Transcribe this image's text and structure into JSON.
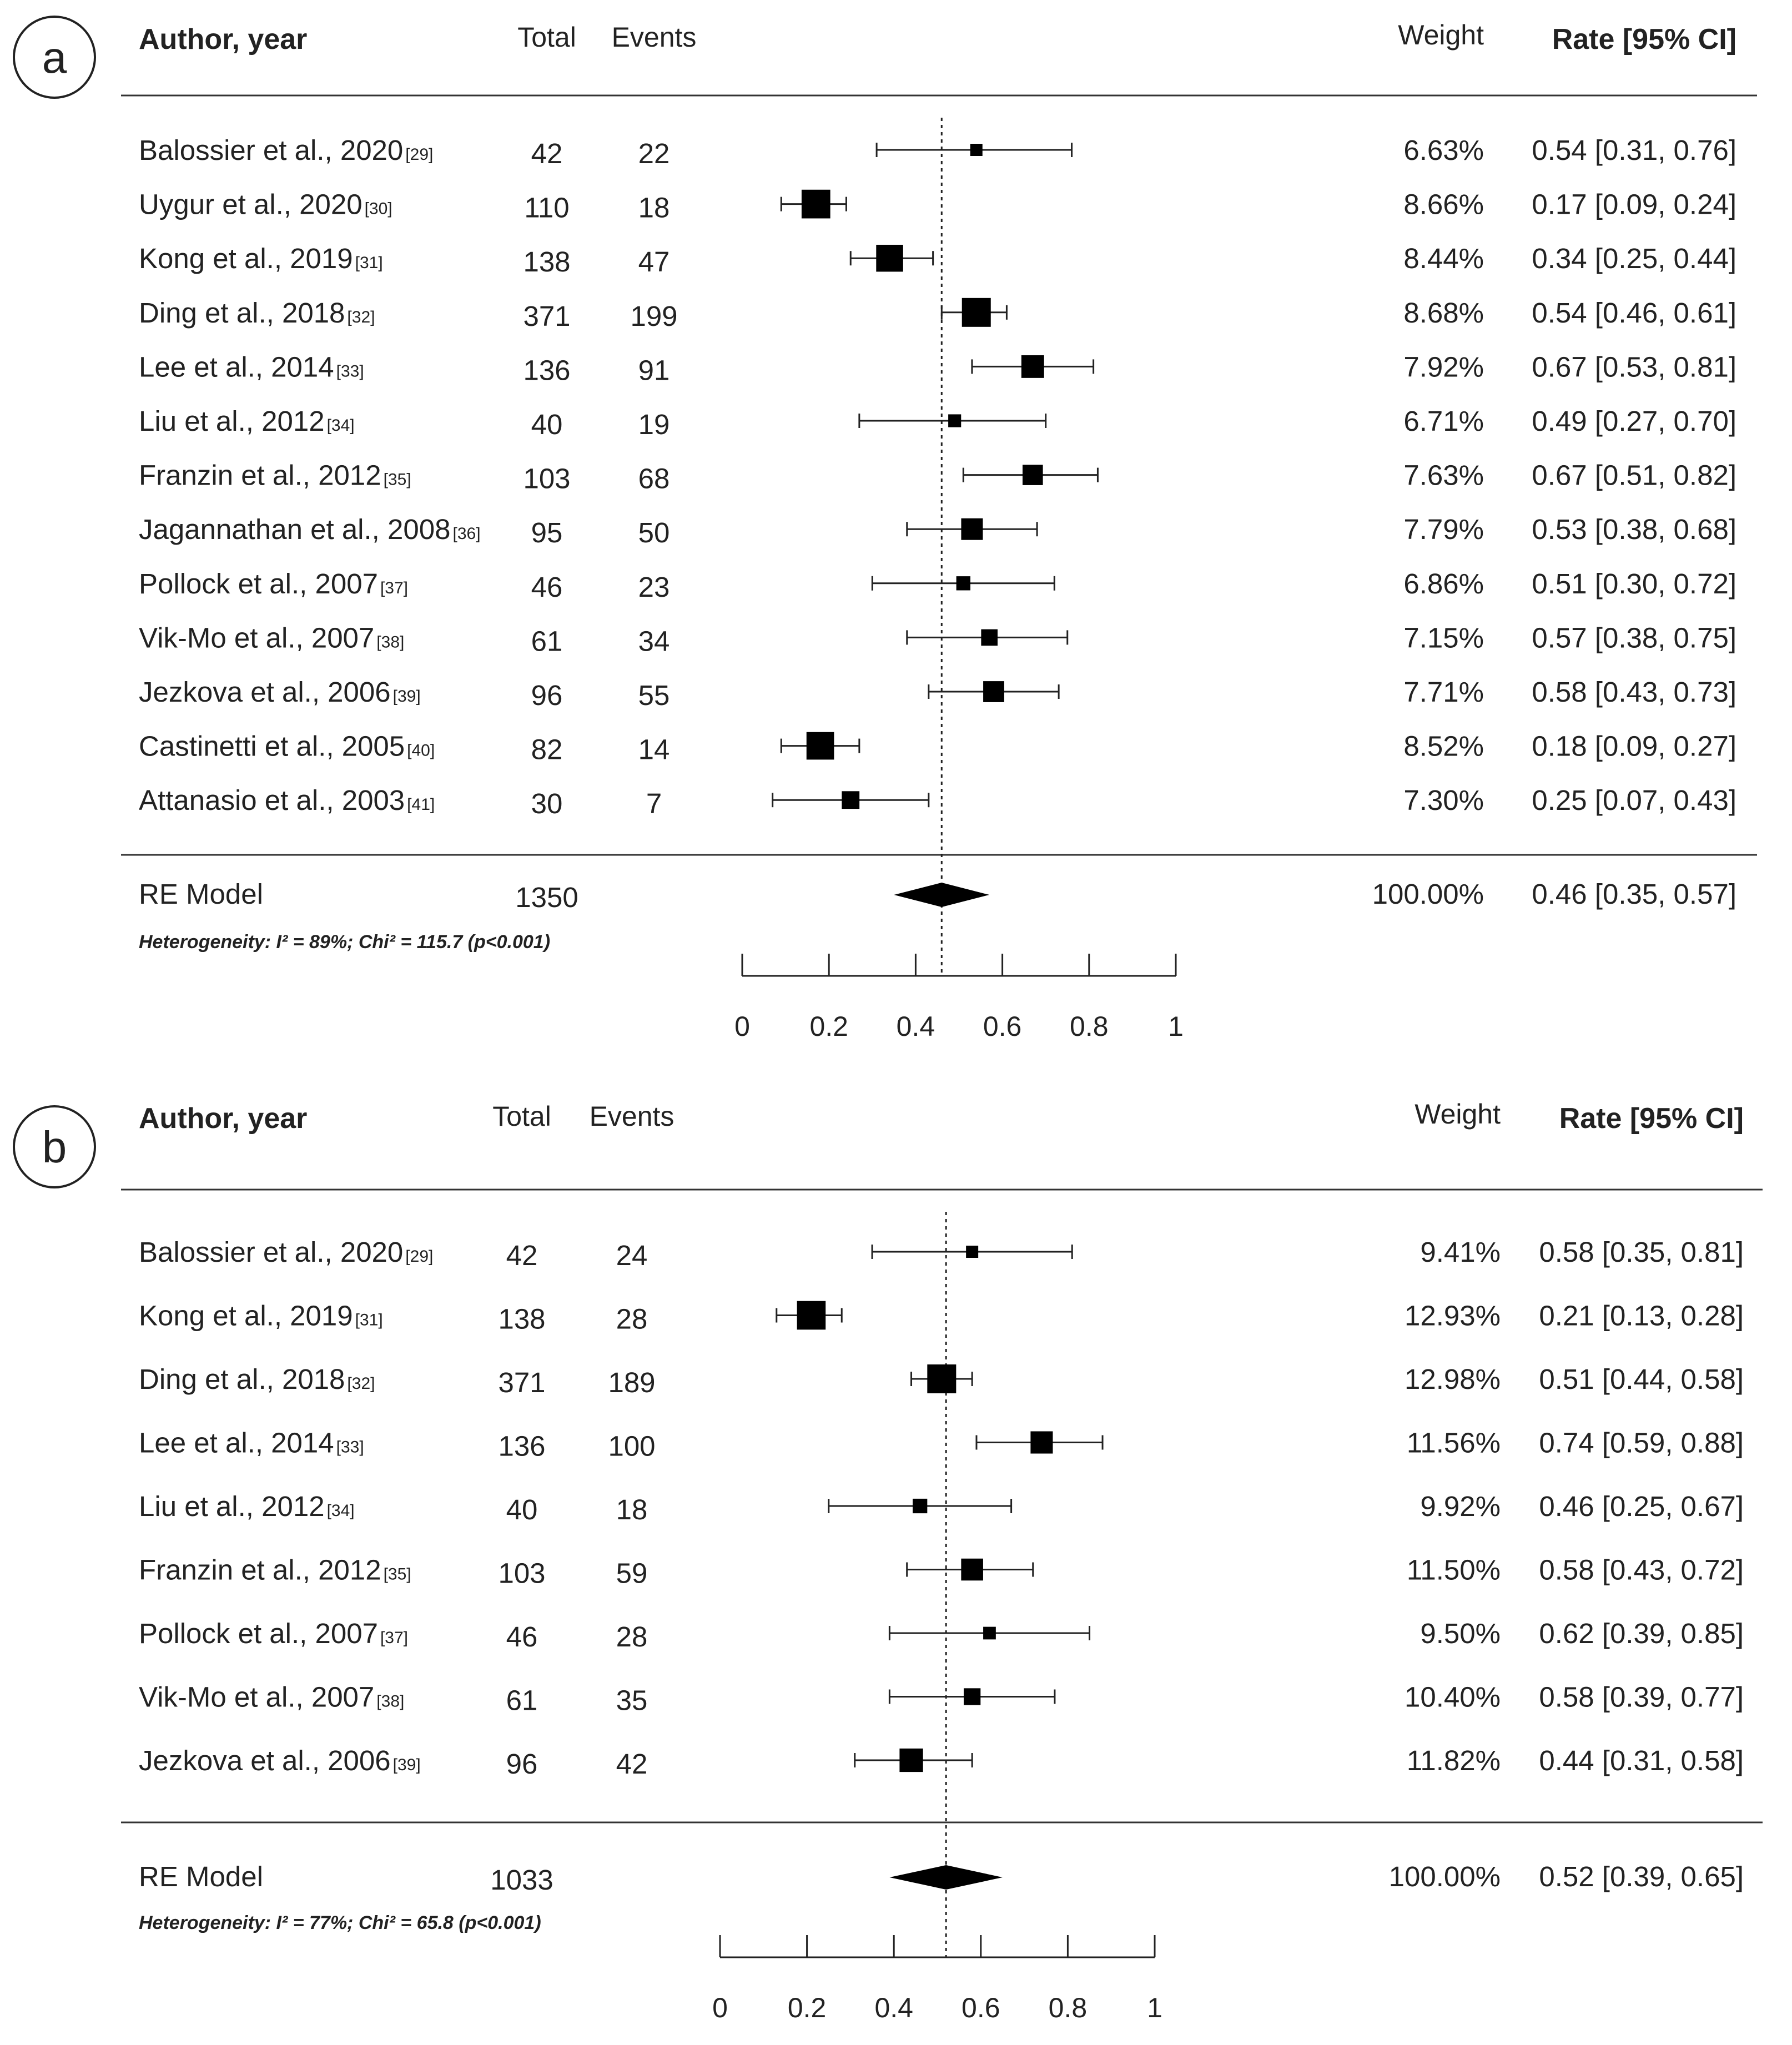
{
  "chart_data": [
    {
      "type": "forest",
      "panel": "a",
      "columns": {
        "author": "Author, year",
        "total": "Total",
        "events": "Events",
        "weight": "Weight",
        "rate": "Rate [95% CI]"
      },
      "studies": [
        {
          "author": "Balossier et al., 2020",
          "ref": "[29]",
          "total": "42",
          "events": "22",
          "weight": "6.63%",
          "rate": "0.54 [0.31, 0.76]",
          "est": 0.54,
          "lo": 0.31,
          "hi": 0.76,
          "w": 6.63
        },
        {
          "author": "Uygur et al., 2020",
          "ref": "[30]",
          "total": "110",
          "events": "18",
          "weight": "8.66%",
          "rate": "0.17 [0.09, 0.24]",
          "est": 0.17,
          "lo": 0.09,
          "hi": 0.24,
          "w": 8.66
        },
        {
          "author": "Kong et al., 2019",
          "ref": "[31]",
          "total": "138",
          "events": "47",
          "weight": "8.44%",
          "rate": "0.34 [0.25, 0.44]",
          "est": 0.34,
          "lo": 0.25,
          "hi": 0.44,
          "w": 8.44
        },
        {
          "author": "Ding et al., 2018",
          "ref": "[32]",
          "total": "371",
          "events": "199",
          "weight": "8.68%",
          "rate": "0.54 [0.46, 0.61]",
          "est": 0.54,
          "lo": 0.46,
          "hi": 0.61,
          "w": 8.68
        },
        {
          "author": "Lee et al., 2014",
          "ref": "[33]",
          "total": "136",
          "events": "91",
          "weight": "7.92%",
          "rate": "0.67 [0.53, 0.81]",
          "est": 0.67,
          "lo": 0.53,
          "hi": 0.81,
          "w": 7.92
        },
        {
          "author": "Liu et al., 2012",
          "ref": "[34]",
          "total": "40",
          "events": "19",
          "weight": "6.71%",
          "rate": "0.49 [0.27, 0.70]",
          "est": 0.49,
          "lo": 0.27,
          "hi": 0.7,
          "w": 6.71
        },
        {
          "author": "Franzin et al., 2012",
          "ref": "[35]",
          "total": "103",
          "events": "68",
          "weight": "7.63%",
          "rate": "0.67 [0.51, 0.82]",
          "est": 0.67,
          "lo": 0.51,
          "hi": 0.82,
          "w": 7.63
        },
        {
          "author": "Jagannathan et al., 2008",
          "ref": "[36]",
          "total": "95",
          "events": "50",
          "weight": "7.79%",
          "rate": "0.53 [0.38, 0.68]",
          "est": 0.53,
          "lo": 0.38,
          "hi": 0.68,
          "w": 7.79
        },
        {
          "author": "Pollock et al., 2007",
          "ref": "[37]",
          "total": "46",
          "events": "23",
          "weight": "6.86%",
          "rate": "0.51 [0.30, 0.72]",
          "est": 0.51,
          "lo": 0.3,
          "hi": 0.72,
          "w": 6.86
        },
        {
          "author": "Vik-Mo et al., 2007",
          "ref": "[38]",
          "total": "61",
          "events": "34",
          "weight": "7.15%",
          "rate": "0.57 [0.38, 0.75]",
          "est": 0.57,
          "lo": 0.38,
          "hi": 0.75,
          "w": 7.15
        },
        {
          "author": "Jezkova et al., 2006",
          "ref": "[39]",
          "total": "96",
          "events": "55",
          "weight": "7.71%",
          "rate": "0.58 [0.43, 0.73]",
          "est": 0.58,
          "lo": 0.43,
          "hi": 0.73,
          "w": 7.71
        },
        {
          "author": "Castinetti et al., 2005",
          "ref": "[40]",
          "total": "82",
          "events": "14",
          "weight": "8.52%",
          "rate": "0.18 [0.09, 0.27]",
          "est": 0.18,
          "lo": 0.09,
          "hi": 0.27,
          "w": 8.52
        },
        {
          "author": "Attanasio et al., 2003",
          "ref": "[41]",
          "total": "30",
          "events": "7",
          "weight": "7.30%",
          "rate": "0.25 [0.07, 0.43]",
          "est": 0.25,
          "lo": 0.07,
          "hi": 0.43,
          "w": 7.3
        }
      ],
      "summary": {
        "label": "RE Model",
        "total": "1350",
        "weight": "100.00%",
        "rate": "0.46 [0.35, 0.57]",
        "est": 0.46,
        "lo": 0.35,
        "hi": 0.57
      },
      "heterogeneity": "Heterogeneity: I² = 89%; Chi² = 115.7 (p<0.001)",
      "xlim": [
        0,
        1
      ],
      "ticks": [
        "0",
        "0.2",
        "0.4",
        "0.6",
        "0.8",
        "1"
      ]
    },
    {
      "type": "forest",
      "panel": "b",
      "columns": {
        "author": "Author, year",
        "total": "Total",
        "events": "Events",
        "weight": "Weight",
        "rate": "Rate [95% CI]"
      },
      "studies": [
        {
          "author": "Balossier et al., 2020",
          "ref": "[29]",
          "total": "42",
          "events": "24",
          "weight": "9.41%",
          "rate": "0.58 [0.35, 0.81]",
          "est": 0.58,
          "lo": 0.35,
          "hi": 0.81,
          "w": 9.41
        },
        {
          "author": "Kong et al., 2019",
          "ref": "[31]",
          "total": "138",
          "events": "28",
          "weight": "12.93%",
          "rate": "0.21 [0.13, 0.28]",
          "est": 0.21,
          "lo": 0.13,
          "hi": 0.28,
          "w": 12.93
        },
        {
          "author": "Ding et al., 2018",
          "ref": "[32]",
          "total": "371",
          "events": "189",
          "weight": "12.98%",
          "rate": "0.51 [0.44, 0.58]",
          "est": 0.51,
          "lo": 0.44,
          "hi": 0.58,
          "w": 12.98
        },
        {
          "author": "Lee et al., 2014",
          "ref": "[33]",
          "total": "136",
          "events": "100",
          "weight": "11.56%",
          "rate": "0.74 [0.59, 0.88]",
          "est": 0.74,
          "lo": 0.59,
          "hi": 0.88,
          "w": 11.56
        },
        {
          "author": "Liu et al., 2012",
          "ref": "[34]",
          "total": "40",
          "events": "18",
          "weight": "9.92%",
          "rate": "0.46 [0.25, 0.67]",
          "est": 0.46,
          "lo": 0.25,
          "hi": 0.67,
          "w": 9.92
        },
        {
          "author": "Franzin et al., 2012",
          "ref": "[35]",
          "total": "103",
          "events": "59",
          "weight": "11.50%",
          "rate": "0.58 [0.43, 0.72]",
          "est": 0.58,
          "lo": 0.43,
          "hi": 0.72,
          "w": 11.5
        },
        {
          "author": "Pollock et al., 2007",
          "ref": "[37]",
          "total": "46",
          "events": "28",
          "weight": "9.50%",
          "rate": "0.62 [0.39, 0.85]",
          "est": 0.62,
          "lo": 0.39,
          "hi": 0.85,
          "w": 9.5
        },
        {
          "author": "Vik-Mo et al., 2007",
          "ref": "[38]",
          "total": "61",
          "events": "35",
          "weight": "10.40%",
          "rate": "0.58 [0.39, 0.77]",
          "est": 0.58,
          "lo": 0.39,
          "hi": 0.77,
          "w": 10.4
        },
        {
          "author": "Jezkova et al., 2006",
          "ref": "[39]",
          "total": "96",
          "events": "42",
          "weight": "11.82%",
          "rate": "0.44 [0.31, 0.58]",
          "est": 0.44,
          "lo": 0.31,
          "hi": 0.58,
          "w": 11.82
        }
      ],
      "summary": {
        "label": "RE Model",
        "total": "1033",
        "weight": "100.00%",
        "rate": "0.52 [0.39, 0.65]",
        "est": 0.52,
        "lo": 0.39,
        "hi": 0.65
      },
      "heterogeneity": "Heterogeneity: I² = 77%; Chi² = 65.8 (p<0.001)",
      "xlim": [
        0,
        1
      ],
      "ticks": [
        "0",
        "0.2",
        "0.4",
        "0.6",
        "0.8",
        "1"
      ]
    }
  ]
}
